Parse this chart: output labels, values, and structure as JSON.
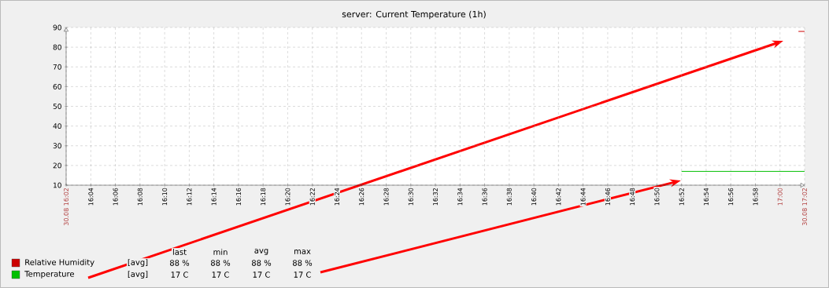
{
  "chart_data": {
    "type": "line",
    "title": "server: Current Temperature (1h)",
    "xlim": [
      16.0333,
      17.0333
    ],
    "ylim": [
      10,
      90
    ],
    "xticks": [
      {
        "value": 16.0333,
        "label": "30.08 16:02"
      },
      {
        "value": 16.0667,
        "label": "16:04"
      },
      {
        "value": 16.1,
        "label": "16:06"
      },
      {
        "value": 16.1333,
        "label": "16:08"
      },
      {
        "value": 16.1667,
        "label": "16:10"
      },
      {
        "value": 16.2,
        "label": "16:12"
      },
      {
        "value": 16.2333,
        "label": "16:14"
      },
      {
        "value": 16.2667,
        "label": "16:16"
      },
      {
        "value": 16.3,
        "label": "16:18"
      },
      {
        "value": 16.3333,
        "label": "16:20"
      },
      {
        "value": 16.3667,
        "label": "16:22"
      },
      {
        "value": 16.4,
        "label": "16:24"
      },
      {
        "value": 16.4333,
        "label": "16:26"
      },
      {
        "value": 16.4667,
        "label": "16:28"
      },
      {
        "value": 16.5,
        "label": "16:30"
      },
      {
        "value": 16.5333,
        "label": "16:32"
      },
      {
        "value": 16.5667,
        "label": "16:34"
      },
      {
        "value": 16.6,
        "label": "16:36"
      },
      {
        "value": 16.6333,
        "label": "16:38"
      },
      {
        "value": 16.6667,
        "label": "16:40"
      },
      {
        "value": 16.7,
        "label": "16:42"
      },
      {
        "value": 16.7333,
        "label": "16:44"
      },
      {
        "value": 16.7667,
        "label": "16:46"
      },
      {
        "value": 16.8,
        "label": "16:48"
      },
      {
        "value": 16.8333,
        "label": "16:50"
      },
      {
        "value": 16.8667,
        "label": "16:52"
      },
      {
        "value": 16.9,
        "label": "16:54"
      },
      {
        "value": 16.9333,
        "label": "16:56"
      },
      {
        "value": 16.9667,
        "label": "16:58"
      },
      {
        "value": 17.0,
        "label": "17:00"
      },
      {
        "value": 17.0333,
        "label": "30.08 17:02"
      }
    ],
    "yticks": [
      10,
      20,
      30,
      40,
      50,
      60,
      70,
      80,
      90
    ],
    "grid": true,
    "legend": "bottom left",
    "series": [
      {
        "name": "Relative Humidity",
        "color": "#cc0000",
        "x": [
          17.025,
          17.0333
        ],
        "values": [
          88,
          88
        ]
      },
      {
        "name": "Temperature",
        "color": "#00c000",
        "x": [
          16.8667,
          17.0333
        ],
        "values": [
          17,
          17
        ]
      }
    ],
    "annotations": [
      "last",
      "min",
      "avg",
      "max",
      "[avg]",
      "88 %",
      "88 %",
      "88 %",
      "88 %",
      "[avg]",
      "17 C",
      "17 C",
      "17 C",
      "17 C"
    ]
  }
}
